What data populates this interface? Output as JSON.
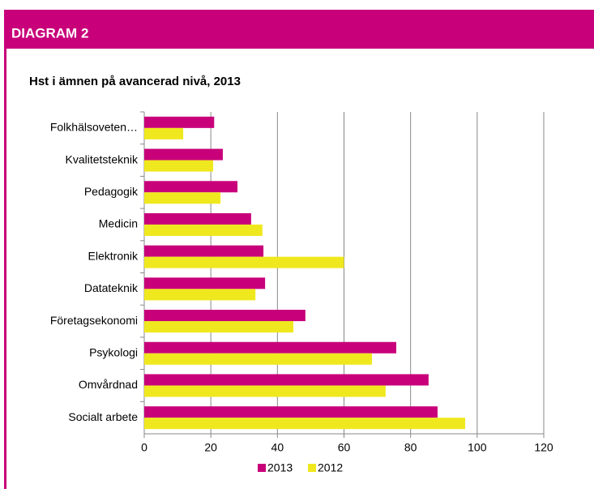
{
  "chart_data": {
    "type": "hbar",
    "header": "DIAGRAM 2",
    "title": "Hst i ämnen på avancerad nivå, 2013",
    "categories": [
      "Folkhälsoveten…",
      "Kvalitetsteknik",
      "Pedagogik",
      "Medicin",
      "Elektronik",
      "Datateknik",
      "Företagsekonomi",
      "Psykologi",
      "Omvårdnad",
      "Socialt arbete"
    ],
    "series": [
      {
        "name": "2013",
        "color": "#c8007a",
        "values": [
          21,
          23.6,
          28,
          32.1,
          35.8,
          36.3,
          48.4,
          75.7,
          85.4,
          88.1
        ]
      },
      {
        "name": "2012",
        "color": "#f0e81e",
        "values": [
          11.7,
          20.7,
          22.9,
          35.5,
          60,
          33.4,
          44.8,
          68.4,
          72.5,
          96.4
        ]
      }
    ],
    "xlim": [
      0,
      120
    ],
    "xticks": [
      0,
      20,
      40,
      60,
      80,
      100,
      120
    ],
    "grid": true,
    "legend": "bottom"
  }
}
